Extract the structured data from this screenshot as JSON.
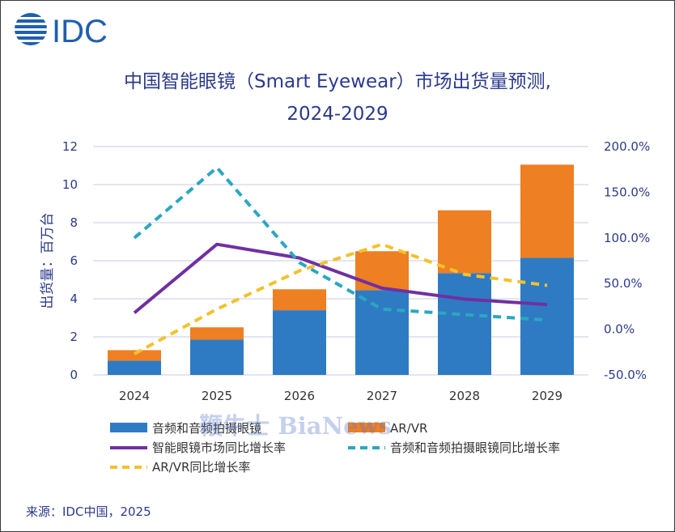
{
  "logo": {
    "text": "IDC",
    "brand_color": "#1f5fae"
  },
  "chart_data": {
    "type": "bar",
    "title_line1": "中国智能眼镜（Smart Eyewear）市场出货量预测,",
    "title_line2": "2024-2029",
    "ylabel": "出货量：百万台",
    "categories": [
      "2024",
      "2025",
      "2026",
      "2027",
      "2028",
      "2029"
    ],
    "ylim": [
      0,
      12
    ],
    "yticks": [
      "0",
      "2",
      "4",
      "6",
      "8",
      "10",
      "12"
    ],
    "y2lim": [
      -50,
      200
    ],
    "y2ticks": [
      "-50.0%",
      "0.0%",
      "50.0%",
      "100.0%",
      "150.0%",
      "200.0%"
    ],
    "grid": true,
    "series": [
      {
        "name": "音频和音频拍摄眼镜",
        "kind": "bar",
        "axis": "left",
        "color": "#2e7bc4",
        "values": [
          0.75,
          1.85,
          3.4,
          4.45,
          5.35,
          6.15
        ]
      },
      {
        "name": "AR/VR",
        "kind": "bar",
        "axis": "left",
        "color": "#ee7f22",
        "values": [
          0.55,
          0.65,
          1.1,
          2.05,
          3.3,
          4.9
        ]
      },
      {
        "name": "智能眼镜市场同比增长率",
        "kind": "line",
        "axis": "right",
        "color": "#7030a0",
        "dash": "solid",
        "values": [
          18,
          93,
          78,
          45,
          33,
          27
        ]
      },
      {
        "name": "音频和音频拍摄眼镜同比增长率",
        "kind": "line",
        "axis": "right",
        "color": "#2aa7c0",
        "dash": "dashed",
        "values": [
          100,
          177,
          73,
          22,
          16,
          10
        ]
      },
      {
        "name": "AR/VR同比增长率",
        "kind": "line",
        "axis": "right",
        "color": "#f3c12d",
        "dash": "dashed",
        "values": [
          -27,
          22,
          64,
          93,
          60,
          48
        ]
      }
    ],
    "legend_position": "bottom-left"
  },
  "source": "来源：IDC中国，2025",
  "watermark": "鞭牛士 BiaNews"
}
